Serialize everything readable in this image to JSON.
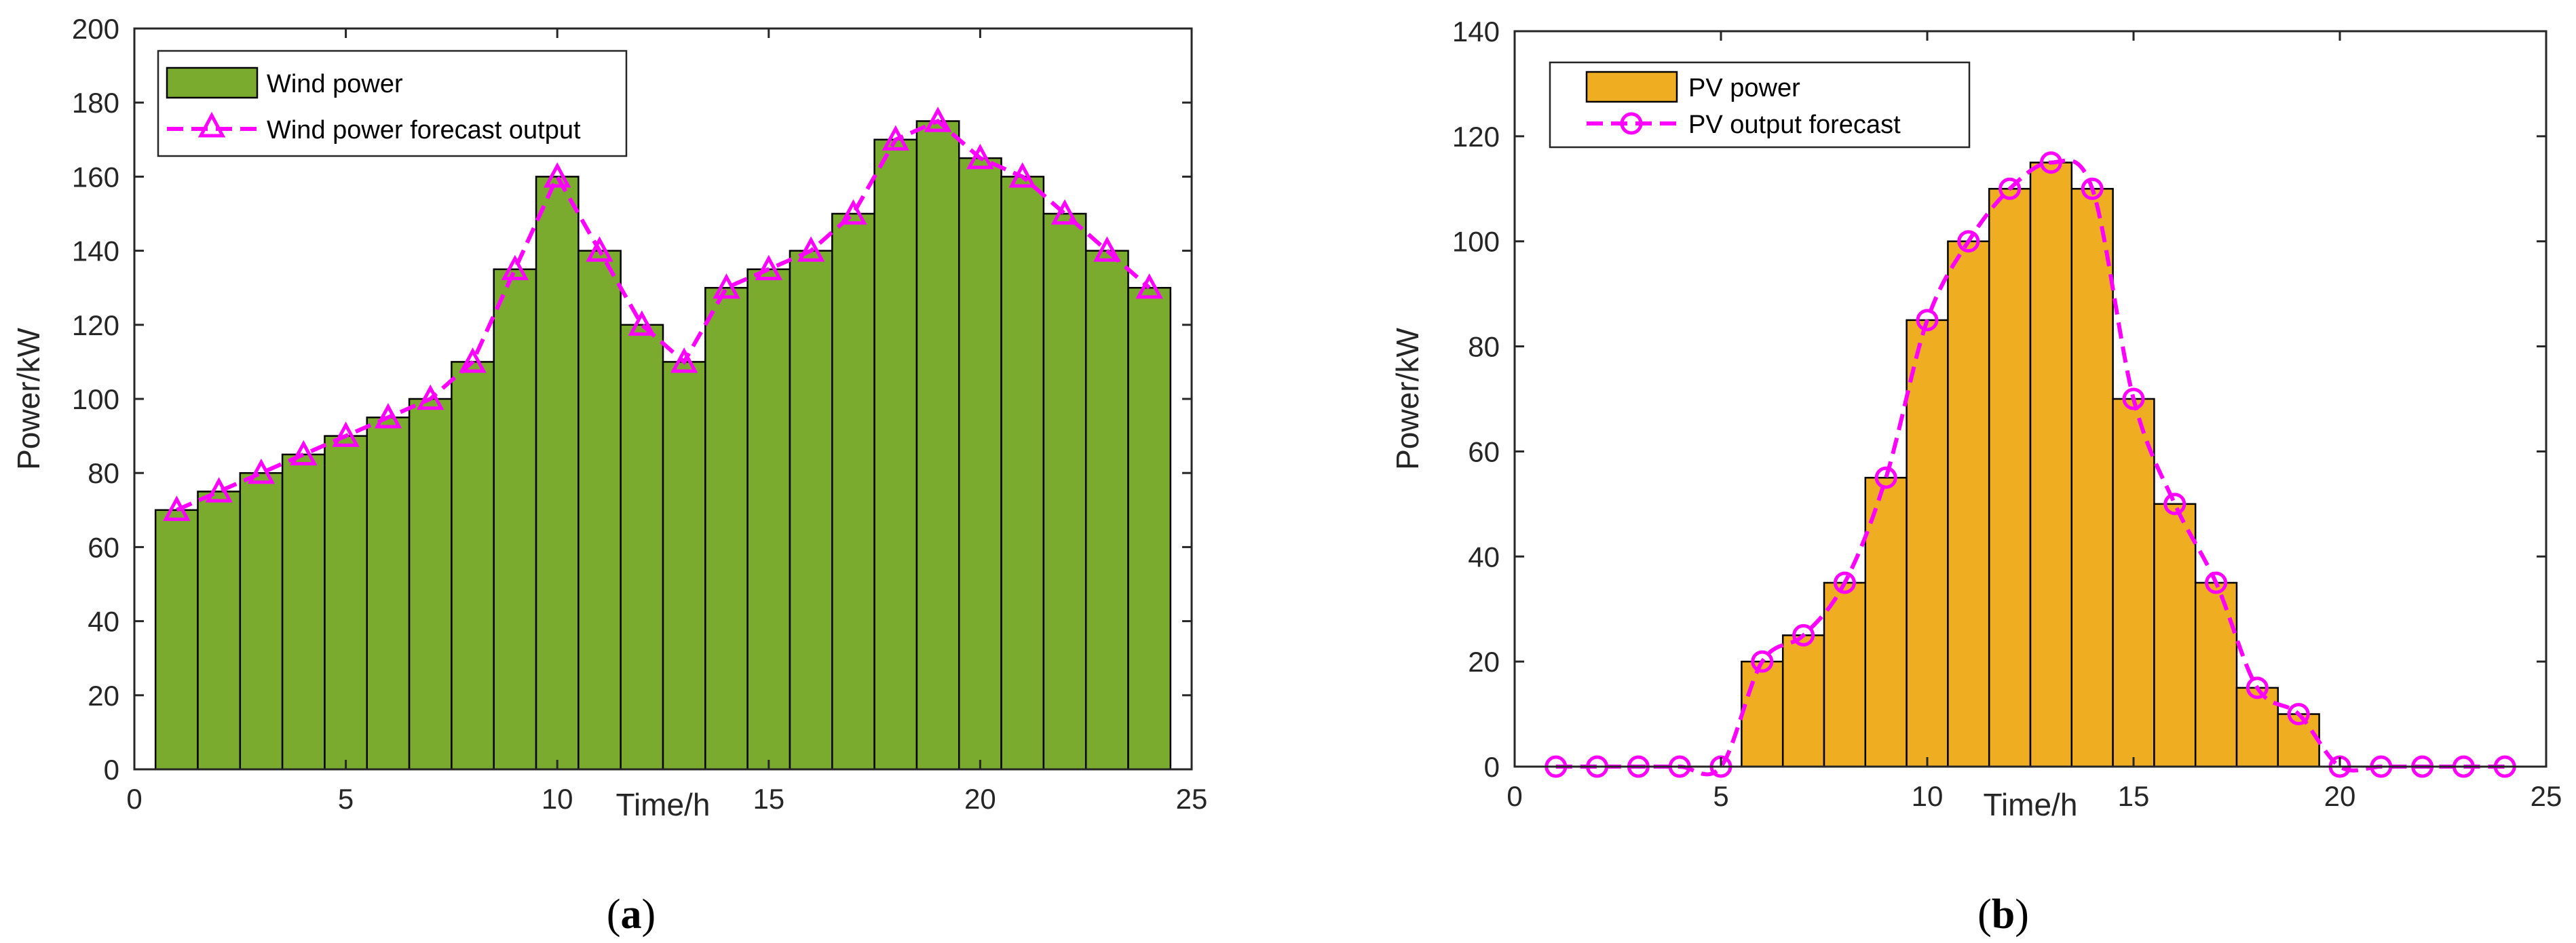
{
  "chart_data": [
    {
      "type": "bar",
      "panel_label": "a",
      "x": [
        1,
        2,
        3,
        4,
        5,
        6,
        7,
        8,
        9,
        10,
        11,
        12,
        13,
        14,
        15,
        16,
        17,
        18,
        19,
        20,
        21,
        22,
        23,
        24
      ],
      "series": [
        {
          "name": "Wind power",
          "kind": "bar",
          "color": "#7aab2e",
          "values": [
            70,
            75,
            80,
            85,
            90,
            95,
            100,
            110,
            135,
            160,
            140,
            120,
            110,
            130,
            135,
            140,
            150,
            170,
            175,
            165,
            160,
            150,
            140,
            130
          ]
        },
        {
          "name": "Wind power forecast output",
          "kind": "line",
          "marker": "triangle",
          "color": "#ff00ff",
          "values": [
            70,
            75,
            80,
            85,
            90,
            95,
            100,
            110,
            135,
            160,
            140,
            120,
            110,
            130,
            135,
            140,
            150,
            170,
            175,
            165,
            160,
            150,
            140,
            130
          ]
        }
      ],
      "xlabel": "Time/h",
      "ylabel": "Power/kW",
      "xlim": [
        0,
        25
      ],
      "ylim": [
        0,
        200
      ],
      "xticks": [
        0,
        5,
        10,
        15,
        20,
        25
      ],
      "yticks": [
        0,
        20,
        40,
        60,
        80,
        100,
        120,
        140,
        160,
        180,
        200
      ],
      "legend_position": "top-left"
    },
    {
      "type": "bar",
      "panel_label": "b",
      "x": [
        1,
        2,
        3,
        4,
        5,
        6,
        7,
        8,
        9,
        10,
        11,
        12,
        13,
        14,
        15,
        16,
        17,
        18,
        19,
        20,
        21,
        22,
        23,
        24
      ],
      "series": [
        {
          "name": "PV power",
          "kind": "bar",
          "color": "#efae22",
          "values": [
            0,
            0,
            0,
            0,
            0,
            20,
            25,
            35,
            55,
            85,
            100,
            110,
            115,
            110,
            70,
            50,
            35,
            15,
            10,
            0,
            0,
            0,
            0,
            0
          ]
        },
        {
          "name": "PV output forecast",
          "kind": "line",
          "marker": "circle",
          "color": "#ff00ff",
          "values": [
            0,
            0,
            0,
            0,
            0,
            20,
            25,
            35,
            55,
            85,
            100,
            110,
            115,
            110,
            70,
            50,
            35,
            15,
            10,
            0,
            0,
            0,
            0,
            0
          ]
        }
      ],
      "xlabel": "Time/h",
      "ylabel": "Power/kW",
      "xlim": [
        0,
        25
      ],
      "ylim": [
        0,
        140
      ],
      "xticks": [
        0,
        5,
        10,
        15,
        20,
        25
      ],
      "yticks": [
        0,
        20,
        40,
        60,
        80,
        100,
        120,
        140
      ],
      "legend_position": "top-left"
    }
  ]
}
